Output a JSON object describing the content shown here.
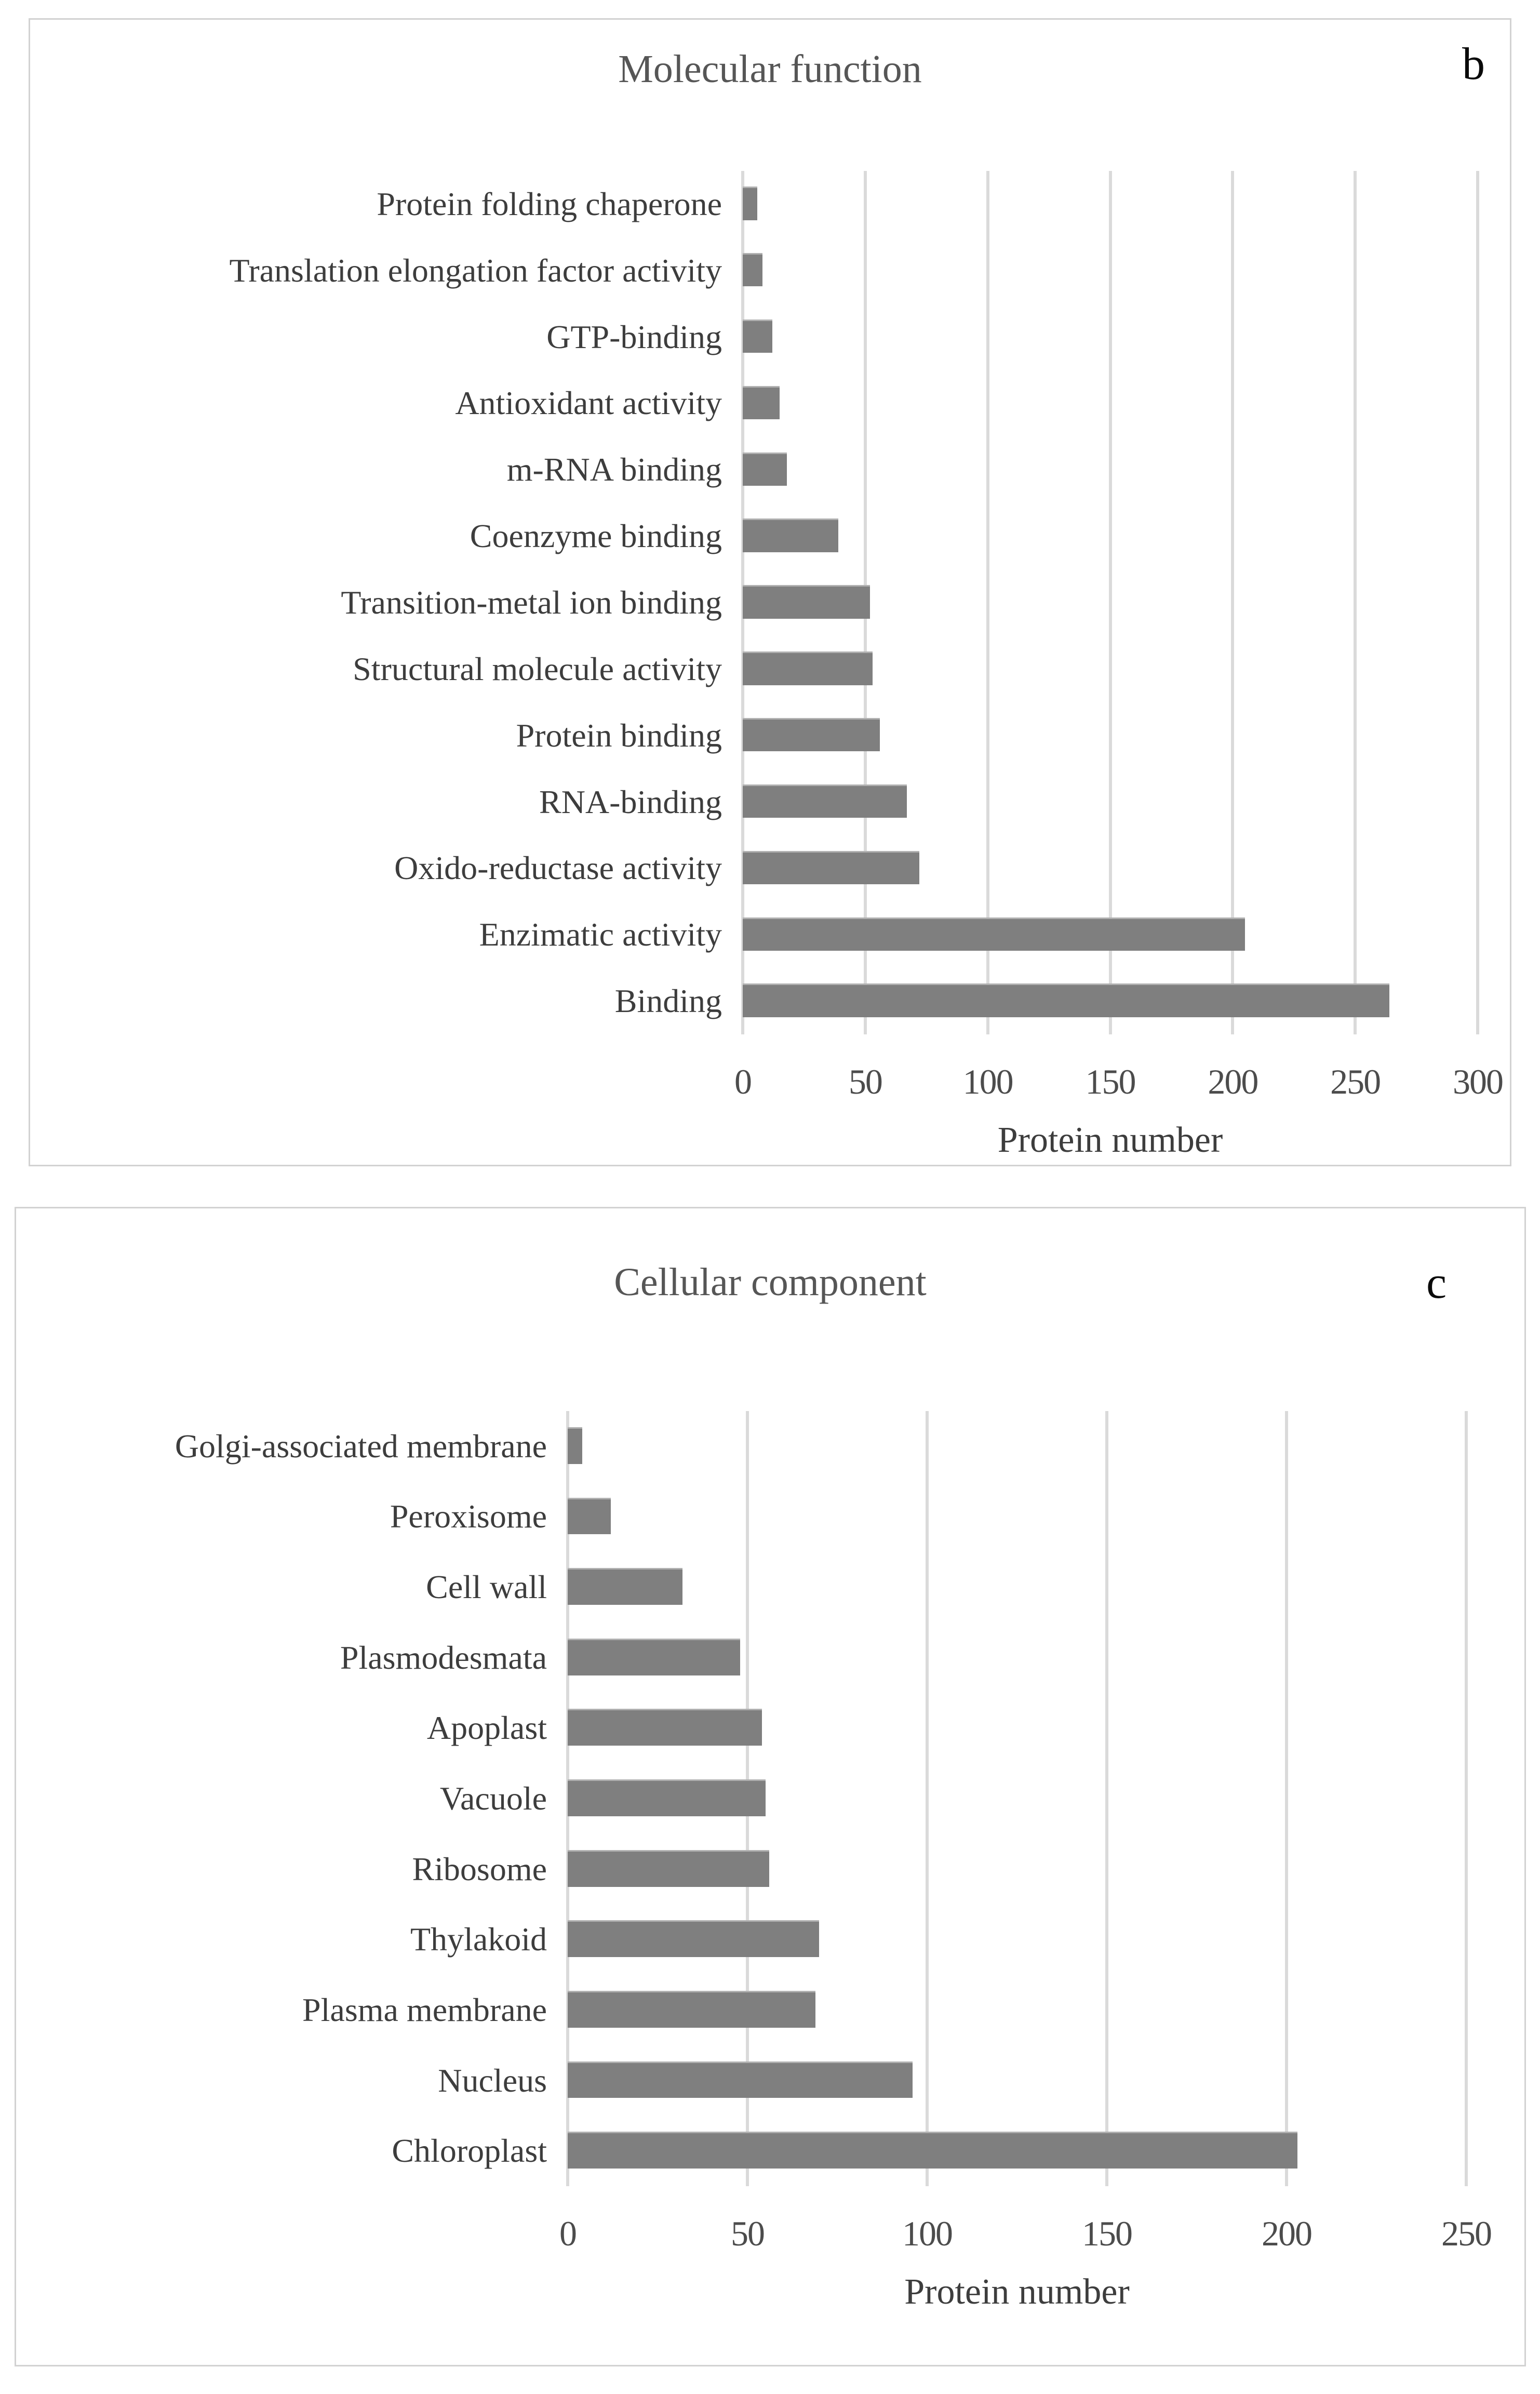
{
  "figure": {
    "background": "#ffffff",
    "panel_border_color": "#d2d2d2",
    "bar_color": "#7f7f7f",
    "gridline_color": "#dadada",
    "text_color": "#3d3d3d",
    "title_color": "#565656"
  },
  "chart_data": [
    {
      "type": "bar",
      "orientation": "horizontal",
      "panel_label": "b",
      "title": "Molecular function",
      "xlabel": "Protein number",
      "xlim": [
        0,
        300
      ],
      "xticks": [
        0,
        50,
        100,
        150,
        200,
        250,
        300
      ],
      "xtick_labels": [
        "0",
        "50",
        "100",
        "150",
        "200",
        "250",
        "300"
      ],
      "grid": true,
      "legend": false,
      "categories": [
        "Protein folding chaperone",
        "Translation elongation factor activity",
        "GTP-binding",
        "Antioxidant activity",
        "m-RNA binding",
        "Coenzyme binding",
        "Transition-metal ion binding",
        "Structural molecule activity",
        "Protein binding",
        "RNA-binding",
        "Oxido-reductase activity",
        "Enzimatic activity",
        "Binding"
      ],
      "values": [
        6,
        8,
        12,
        15,
        18,
        39,
        52,
        53,
        56,
        67,
        72,
        205,
        264
      ]
    },
    {
      "type": "bar",
      "orientation": "horizontal",
      "panel_label": "c",
      "title": "Cellular component",
      "xlabel": "Protein number",
      "xlim": [
        0,
        250
      ],
      "xticks": [
        0,
        50,
        100,
        150,
        200,
        250
      ],
      "xtick_labels": [
        "0",
        "50",
        "100",
        "150",
        "200",
        "250"
      ],
      "grid": true,
      "legend": false,
      "categories": [
        "Golgi-associated membrane",
        "Peroxisome",
        "Cell wall",
        "Plasmodesmata",
        "Apoplast",
        "Vacuole",
        "Ribosome",
        "Thylakoid",
        "Plasma membrane",
        "Nucleus",
        "Chloroplast"
      ],
      "values": [
        4,
        12,
        32,
        48,
        54,
        55,
        56,
        70,
        69,
        96,
        203
      ]
    }
  ]
}
